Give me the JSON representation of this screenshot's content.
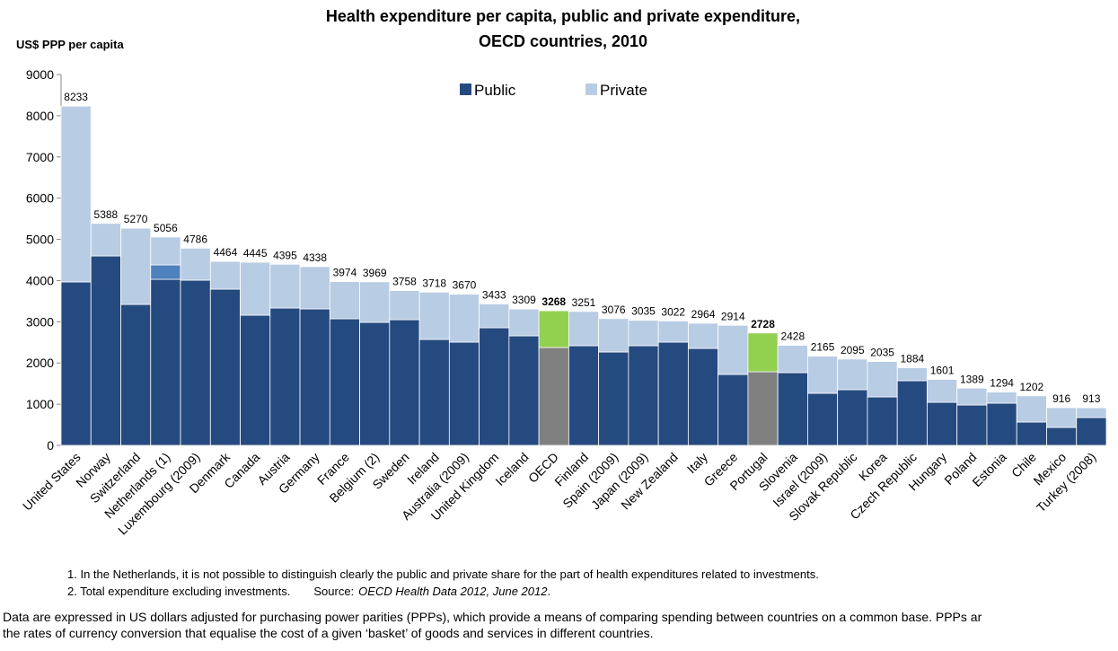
{
  "chart_data": {
    "type": "stacked_bar",
    "title": [
      "Health expenditure per capita, public and private expenditure,",
      "OECD countries, 2010"
    ],
    "y_axis_label": "US$ PPP per capita",
    "categories": [
      "United States",
      "Norway",
      "Switzerland",
      "Netherlands (1)",
      "Luxembourg (2009)",
      "Denmark",
      "Canada",
      "Austria",
      "Germany",
      "France",
      "Belgium (2)",
      "Sweden",
      "Ireland",
      "Australia (2009)",
      "United Kingdom",
      "Iceland",
      "OECD",
      "Finland",
      "Spain (2009)",
      "Japan (2009)",
      "New Zealand",
      "Italy",
      "Greece",
      "Portugal",
      "Slovenia",
      "Israel (2009)",
      "Slovak Republic",
      "Korea",
      "Czech Republic",
      "Hungary",
      "Poland",
      "Estonia",
      "Chile",
      "Mexico",
      "Turkey (2008)"
    ],
    "series": [
      {
        "name": "Public",
        "color": "#254a7f",
        "highlight_color": "#808080",
        "values": [
          3967,
          4597,
          3420,
          4030,
          4009,
          3791,
          3159,
          3333,
          3312,
          3072,
          2985,
          3050,
          2571,
          2505,
          2854,
          2658,
          2375,
          2418,
          2266,
          2418,
          2505,
          2353,
          1721,
          1786,
          1765,
          1264,
          1351,
          1176,
          1569,
          1046,
          980,
          1024,
          566,
          436,
          675
        ]
      },
      {
        "color": "#4f81bd",
        "values": [
          null,
          null,
          null,
          350,
          null,
          null,
          null,
          null,
          null,
          null,
          null,
          null,
          null,
          null,
          null,
          null,
          null,
          null,
          null,
          null,
          null,
          null,
          null,
          null,
          null,
          null,
          null,
          null,
          null,
          null,
          null,
          null,
          null,
          null,
          null
        ]
      },
      {
        "name": "Private",
        "color": "#b8cce4",
        "highlight_color": "#92d050",
        "values": [
          4266,
          791,
          1850,
          676,
          777,
          673,
          1286,
          1062,
          1026,
          902,
          984,
          708,
          1147,
          1165,
          579,
          651,
          893,
          833,
          810,
          617,
          517,
          611,
          1193,
          942,
          663,
          901,
          744,
          859,
          315,
          555,
          409,
          270,
          636,
          480,
          238
        ]
      }
    ],
    "totals": [
      8233,
      5388,
      5270,
      5056,
      4786,
      4464,
      4445,
      4395,
      4338,
      3974,
      3969,
      3758,
      3718,
      3670,
      3433,
      3309,
      3268,
      3251,
      3076,
      3035,
      3022,
      2964,
      2914,
      2728,
      2428,
      2165,
      2095,
      2035,
      1884,
      1601,
      1389,
      1294,
      1202,
      916,
      913
    ],
    "highlight": [
      "OECD",
      "Portugal"
    ],
    "ylim": [
      0,
      9000
    ],
    "yticks": [
      0,
      1000,
      2000,
      3000,
      4000,
      5000,
      6000,
      7000,
      8000,
      9000
    ],
    "grid": false,
    "legend": "top",
    "notes": [
      "1. In the Netherlands, it is not possible to distinguish clearly the public and private share for the part of health expenditures related to investments.",
      "2. Total expenditure excluding investments.",
      "Source:",
      "OECD Health Data 2012, June 2012",
      "."
    ],
    "description": [
      "Data are expressed in US dollars adjusted for purchasing power parities (PPPs), which provide a means of comparing spending between countries on a common base. PPPs ar",
      "the rates of currency conversion that equalise the cost of a given ‘basket’ of goods and services in different countries."
    ]
  }
}
